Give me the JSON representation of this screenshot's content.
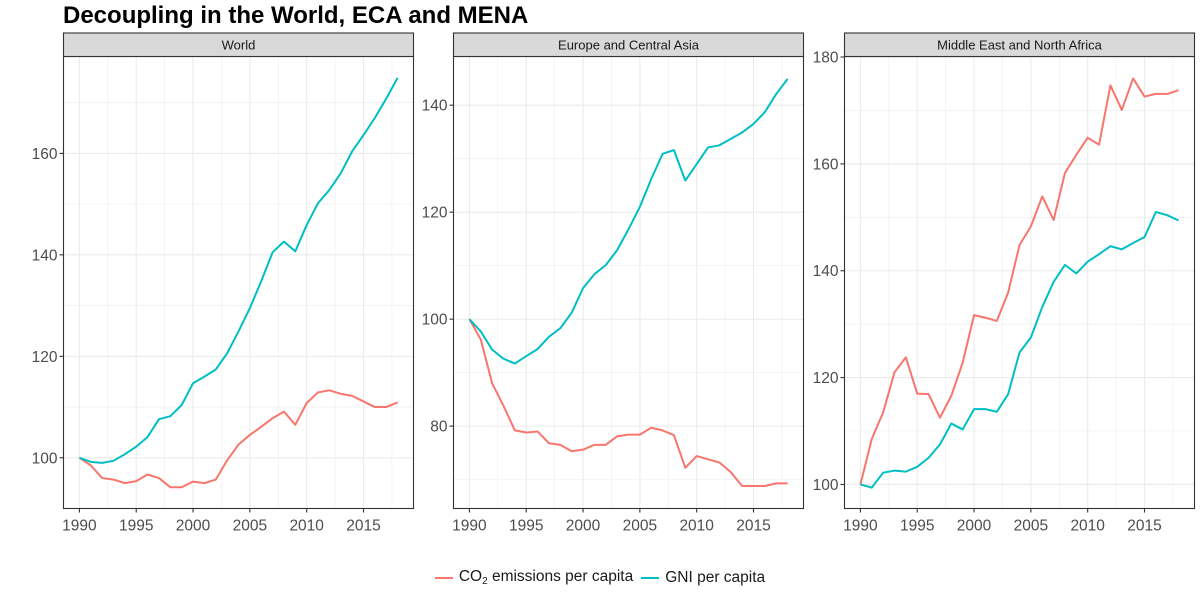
{
  "chart_data": {
    "type": "line",
    "title": "Decoupling in the World, ECA and MENA",
    "xlabel": "",
    "ylabel": "",
    "grid": true,
    "legend": {
      "placement": "bottom",
      "entries": [
        {
          "key": "co2",
          "label_main": "CO",
          "label_sub": "2",
          "label_rest": " emissions per capita",
          "color": "#F8766D"
        },
        {
          "key": "gni",
          "label": "GNI per capita",
          "color": "#00BFC4"
        }
      ]
    },
    "x": [
      1990,
      1991,
      1992,
      1993,
      1994,
      1995,
      1996,
      1997,
      1998,
      1999,
      2000,
      2001,
      2002,
      2003,
      2004,
      2005,
      2006,
      2007,
      2008,
      2009,
      2010,
      2011,
      2012,
      2013,
      2014,
      2015,
      2016,
      2017,
      2018
    ],
    "xlim": [
      1988.6,
      2019.4
    ],
    "x_ticks": [
      1990,
      1995,
      2000,
      2005,
      2010,
      2015
    ],
    "panels": [
      {
        "strip": "World",
        "ylim": [
          90.0,
          179.1
        ],
        "y_ticks": [
          100,
          120,
          140,
          160
        ],
        "series": [
          {
            "name": "CO2 emissions per capita",
            "key": "co2",
            "color": "#F8766D",
            "values": [
              100,
              98.5,
              96,
              95.7,
              95,
              95.4,
              96.7,
              96,
              94.2,
              94.2,
              95.3,
              95,
              95.7,
              99.5,
              102.6,
              104.5,
              106.1,
              107.8,
              109.1,
              106.5,
              110.8,
              112.9,
              113.3,
              112.6,
              112.2,
              111.1,
              110,
              110,
              110.9
            ]
          },
          {
            "name": "GNI per capita",
            "key": "gni",
            "color": "#00BFC4",
            "values": [
              100,
              99.2,
              99,
              99.4,
              100.7,
              102.2,
              104.1,
              107.6,
              108.2,
              110.4,
              114.7,
              116,
              117.4,
              120.6,
              124.9,
              129.5,
              134.8,
              140.5,
              142.6,
              140.7,
              145.9,
              150.2,
              152.8,
              156.1,
              160.4,
              163.6,
              167,
              170.8,
              174.9
            ]
          }
        ]
      },
      {
        "strip": "Europe and Central Asia",
        "ylim": [
          64.6,
          149.1
        ],
        "y_ticks": [
          80,
          100,
          120,
          140
        ],
        "series": [
          {
            "name": "CO2 emissions per capita",
            "key": "co2",
            "color": "#F8766D",
            "values": [
              100,
              96.2,
              88,
              83.8,
              79.2,
              78.8,
              79,
              76.8,
              76.5,
              75.3,
              75.6,
              76.5,
              76.5,
              78.1,
              78.4,
              78.4,
              79.7,
              79.2,
              78.3,
              72.2,
              74.4,
              73.8,
              73.2,
              71.4,
              68.8,
              68.8,
              68.8,
              69.3,
              69.3
            ]
          },
          {
            "name": "GNI per capita",
            "key": "gni",
            "color": "#00BFC4",
            "values": [
              100,
              97.7,
              94.3,
              92.6,
              91.7,
              93.1,
              94.4,
              96.7,
              98.3,
              101.2,
              105.8,
              108.4,
              110.1,
              112.9,
              116.8,
              121,
              126.2,
              130.9,
              131.6,
              125.9,
              129,
              132.1,
              132.5,
              133.7,
              134.9,
              136.5,
              138.7,
              142.1,
              144.9
            ]
          }
        ]
      },
      {
        "strip": "Middle East and North Africa",
        "ylim": [
          95.5,
          180.1
        ],
        "y_ticks": [
          100,
          120,
          140,
          160,
          180
        ],
        "series": [
          {
            "name": "CO2 emissions per capita",
            "key": "co2",
            "color": "#F8766D",
            "values": [
              100,
              108.5,
              113.5,
              121,
              123.8,
              117,
              116.9,
              112.5,
              116.6,
              122.8,
              131.7,
              131.2,
              130.6,
              135.9,
              144.8,
              148.3,
              153.9,
              149.5,
              158.3,
              161.7,
              164.9,
              163.6,
              174.7,
              170.1,
              176,
              172.6,
              173.1,
              173.1,
              173.8
            ]
          },
          {
            "name": "GNI per capita",
            "key": "gni",
            "color": "#00BFC4",
            "values": [
              100,
              99.4,
              102.2,
              102.6,
              102.4,
              103.3,
              105,
              107.5,
              111.4,
              110.3,
              114.1,
              114.1,
              113.6,
              116.9,
              124.7,
              127.5,
              133.2,
              137.9,
              141.1,
              139.5,
              141.7,
              143.1,
              144.6,
              144,
              145.2,
              146.3,
              151,
              150.4,
              149.4
            ]
          }
        ]
      }
    ]
  }
}
